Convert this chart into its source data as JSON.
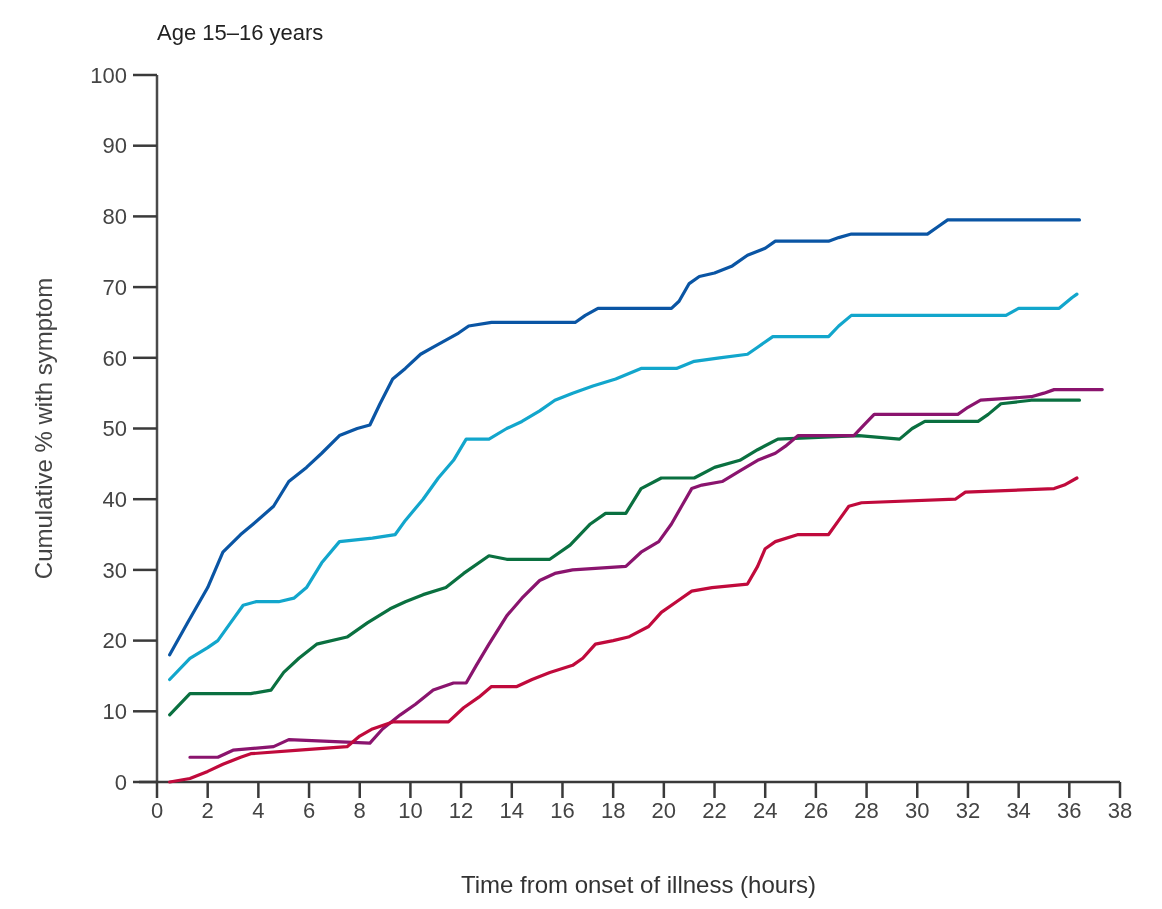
{
  "chart_data": {
    "type": "line",
    "title": "Age 15–16 years",
    "xlabel": "Time from onset of illness (hours)",
    "ylabel": "Cumulative % with symptom",
    "xlim": [
      0,
      38
    ],
    "xticks": [
      0,
      2,
      4,
      6,
      8,
      10,
      12,
      14,
      16,
      18,
      20,
      22,
      24,
      26,
      28,
      30,
      32,
      34,
      36,
      38
    ],
    "ylim": [
      0,
      100
    ],
    "yticks": [
      0,
      10,
      20,
      30,
      40,
      50,
      60,
      70,
      80,
      90,
      100
    ],
    "series": [
      {
        "color": "#0a55a4",
        "x": [
          0.5,
          1.2,
          2,
          2.6,
          3.3,
          3.8,
          4.6,
          5.2,
          5.9,
          6.5,
          7.2,
          7.9,
          8.4,
          8.8,
          9.3,
          9.8,
          10.4,
          10.9,
          11.4,
          11.9,
          12.3,
          13.2,
          16.5,
          16.9,
          17.4,
          20.3,
          20.6,
          21,
          21.4,
          22,
          22.7,
          23.3,
          24,
          24.4,
          26.5,
          26.9,
          27.4,
          30.4,
          30.8,
          31.2,
          36.4
        ],
        "values": [
          18,
          22.5,
          27.5,
          32.5,
          35,
          36.5,
          39,
          42.5,
          44.5,
          46.5,
          49,
          50,
          50.5,
          53.5,
          57,
          58.5,
          60.5,
          61.5,
          62.5,
          63.5,
          64.5,
          65,
          65,
          66,
          67,
          67,
          68,
          70.5,
          71.5,
          72,
          73,
          74.5,
          75.5,
          76.5,
          76.5,
          77,
          77.5,
          77.5,
          78.5,
          79.5,
          79.5
        ]
      },
      {
        "color": "#12a6cc",
        "x": [
          0.5,
          1.3,
          2,
          2.4,
          2.9,
          3.4,
          3.9,
          4.8,
          5.4,
          5.9,
          6.5,
          7.2,
          8.5,
          9.4,
          9.8,
          10.5,
          11.1,
          11.7,
          12.2,
          13.1,
          13.8,
          14.4,
          15.1,
          15.7,
          16.4,
          17.2,
          18.1,
          19.1,
          20.5,
          21.2,
          22.2,
          23.3,
          23.7,
          24.3,
          26.5,
          26.9,
          27.4,
          33.5,
          34,
          35.6,
          36.1,
          36.3
        ],
        "values": [
          14.5,
          17.5,
          19,
          20,
          22.5,
          25,
          25.5,
          25.5,
          26,
          27.5,
          31,
          34,
          34.5,
          35,
          37,
          40,
          43,
          45.5,
          48.5,
          48.5,
          50,
          51,
          52.5,
          54,
          55,
          56,
          57,
          58.5,
          58.5,
          59.5,
          60,
          60.5,
          61.5,
          63,
          63,
          64.5,
          66,
          66,
          67,
          67,
          68.5,
          69
        ]
      },
      {
        "color": "#0a7040",
        "x": [
          0.5,
          1.3,
          3.7,
          4.5,
          5,
          5.6,
          6.3,
          7.5,
          8.3,
          9.2,
          9.8,
          10.5,
          11.4,
          12.1,
          13.1,
          13.8,
          15.5,
          16.3,
          17.1,
          17.7,
          18.5,
          19.1,
          19.9,
          21.2,
          22,
          23,
          23.7,
          24.5,
          27.7,
          29.3,
          29.8,
          30.3,
          32.4,
          32.8,
          33.3,
          34.5,
          36.4
        ],
        "values": [
          9.5,
          12.5,
          12.5,
          13,
          15.5,
          17.5,
          19.5,
          20.5,
          22.5,
          24.5,
          25.5,
          26.5,
          27.5,
          29.5,
          32,
          31.5,
          31.5,
          33.5,
          36.5,
          38,
          38,
          41.5,
          43,
          43,
          44.5,
          45.5,
          47,
          48.5,
          49,
          48.5,
          50,
          51,
          51,
          52,
          53.5,
          54,
          54
        ]
      },
      {
        "color": "#8a146e",
        "x": [
          1.3,
          2.4,
          3,
          4.6,
          5.2,
          8.4,
          8.9,
          9.6,
          10.2,
          10.9,
          11.7,
          12.2,
          12.6,
          13.1,
          13.8,
          14.4,
          15.1,
          15.7,
          16.4,
          18.5,
          19.1,
          19.8,
          20.3,
          20.7,
          21.1,
          21.5,
          22.3,
          23,
          23.7,
          24.4,
          24.8,
          25.3,
          27.5,
          27.9,
          28.3,
          31.6,
          32,
          32.5,
          34.5,
          35,
          35.4,
          37.3
        ],
        "values": [
          3.5,
          3.5,
          4.5,
          5,
          6,
          5.5,
          7.5,
          9.5,
          11,
          13,
          14,
          14,
          16.5,
          19.5,
          23.5,
          26,
          28.5,
          29.5,
          30,
          30.5,
          32.5,
          34,
          36.5,
          39,
          41.5,
          42,
          42.5,
          44,
          45.5,
          46.5,
          47.5,
          49,
          49,
          50.5,
          52,
          52,
          53,
          54,
          54.5,
          55,
          55.5,
          55.5
        ]
      },
      {
        "color": "#c00a3c",
        "x": [
          0.5,
          1.3,
          2,
          2.6,
          3.3,
          3.7,
          5.6,
          7.5,
          8,
          8.5,
          9.3,
          11.5,
          12.1,
          12.7,
          13.2,
          14.2,
          14.8,
          15.5,
          16.4,
          16.8,
          17.3,
          18,
          18.6,
          19.4,
          19.9,
          20.5,
          21.1,
          21.9,
          23.3,
          23.7,
          24,
          24.4,
          25.3,
          26.5,
          26.9,
          27.3,
          27.8,
          31.5,
          31.9,
          35.4,
          35.8,
          36.3
        ],
        "values": [
          0,
          0.5,
          1.5,
          2.5,
          3.5,
          4,
          4.5,
          5,
          6.5,
          7.5,
          8.5,
          8.5,
          10.5,
          12,
          13.5,
          13.5,
          14.5,
          15.5,
          16.5,
          17.5,
          19.5,
          20,
          20.5,
          22,
          24,
          25.5,
          27,
          27.5,
          28,
          30.5,
          33,
          34,
          35,
          35,
          37,
          39,
          39.5,
          40,
          41,
          41.5,
          42,
          43
        ]
      }
    ]
  }
}
